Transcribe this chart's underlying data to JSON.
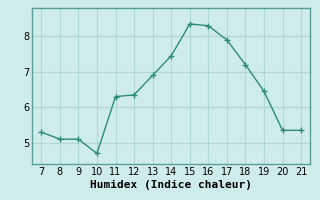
{
  "x": [
    7,
    8,
    9,
    10,
    11,
    12,
    13,
    14,
    15,
    16,
    17,
    18,
    19,
    20,
    21
  ],
  "y": [
    5.3,
    5.1,
    5.1,
    4.7,
    6.3,
    6.35,
    6.9,
    7.45,
    8.35,
    8.3,
    7.9,
    7.2,
    6.45,
    5.35,
    5.35
  ],
  "line_color": "#2e8b7a",
  "marker": "+",
  "marker_color": "#2e8b7a",
  "background_color": "#ceecea",
  "grid_color": "#b0d8d4",
  "xlabel": "Humidex (Indice chaleur)",
  "xlabel_fontsize": 8,
  "tick_fontsize": 7,
  "xlim": [
    6.5,
    21.5
  ],
  "ylim": [
    4.4,
    8.8
  ],
  "yticks": [
    5,
    6,
    7,
    8
  ],
  "xticks": [
    7,
    8,
    9,
    10,
    11,
    12,
    13,
    14,
    15,
    16,
    17,
    18,
    19,
    20,
    21
  ],
  "hline_color": "#e8a0a0",
  "hline_y": [
    5,
    6,
    7,
    8
  ],
  "spine_color": "#5a9e9a"
}
